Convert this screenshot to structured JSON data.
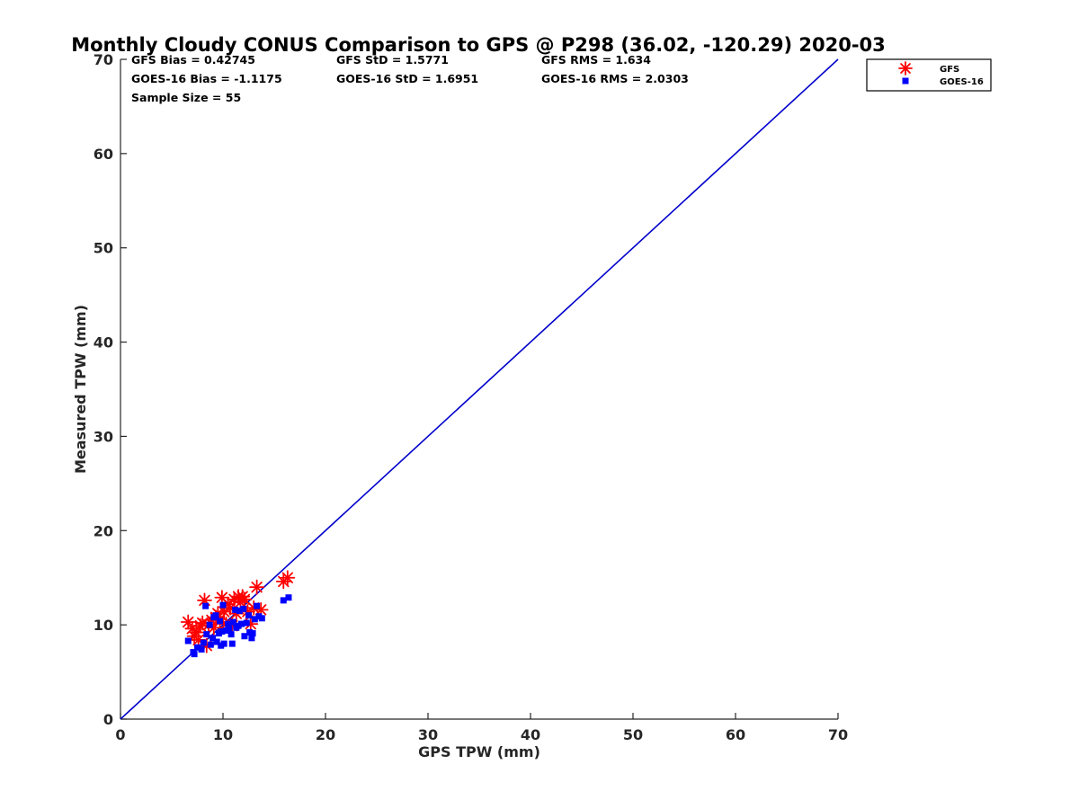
{
  "chart_data": {
    "type": "scatter",
    "title": "Monthly Cloudy CONUS Comparison to GPS @ P298 (36.02, -120.29) 2020-03",
    "xlabel": "GPS TPW (mm)",
    "ylabel": "Measured TPW (mm)",
    "xlim": [
      0,
      70
    ],
    "ylim": [
      0,
      70
    ],
    "xticks": [
      0,
      10,
      20,
      30,
      40,
      50,
      60,
      70
    ],
    "yticks": [
      0,
      10,
      20,
      30,
      40,
      50,
      60,
      70
    ],
    "grid": false,
    "legend_position": "top-right (outside)",
    "stats": [
      [
        "GFS Bias = 0.42745",
        "GFS StD = 1.5771",
        "GFS RMS = 1.634"
      ],
      [
        "GOES-16 Bias = -1.1175",
        "GOES-16 StD = 1.6951",
        "GOES-16 RMS = 2.0303"
      ],
      [
        "Sample Size = 55",
        "",
        ""
      ]
    ],
    "reference_line": {
      "from": [
        0,
        0
      ],
      "to": [
        70,
        70
      ],
      "color": "#0000cc"
    },
    "series": [
      {
        "name": "GFS",
        "marker": "asterisk",
        "color": "#ff0000",
        "points": [
          [
            6.6,
            10.3
          ],
          [
            7.0,
            9.6
          ],
          [
            7.2,
            8.8
          ],
          [
            7.4,
            9.2
          ],
          [
            7.6,
            8.4
          ],
          [
            7.8,
            9.9
          ],
          [
            8.0,
            10.2
          ],
          [
            8.2,
            12.6
          ],
          [
            8.4,
            7.8
          ],
          [
            8.6,
            10.0
          ],
          [
            8.9,
            10.5
          ],
          [
            9.1,
            9.7
          ],
          [
            9.3,
            10.8
          ],
          [
            9.5,
            11.2
          ],
          [
            9.7,
            10.6
          ],
          [
            9.9,
            12.9
          ],
          [
            10.1,
            11.4
          ],
          [
            10.3,
            10.1
          ],
          [
            10.5,
            12.2
          ],
          [
            10.7,
            11.8
          ],
          [
            10.9,
            9.9
          ],
          [
            11.1,
            12.7
          ],
          [
            11.3,
            11.2
          ],
          [
            11.5,
            13.0
          ],
          [
            11.7,
            12.4
          ],
          [
            11.9,
            13.0
          ],
          [
            12.1,
            12.7
          ],
          [
            12.4,
            11.4
          ],
          [
            12.7,
            10.1
          ],
          [
            13.0,
            11.8
          ],
          [
            13.3,
            14.0
          ],
          [
            13.7,
            11.6
          ],
          [
            15.9,
            14.6
          ],
          [
            16.3,
            15.0
          ]
        ]
      },
      {
        "name": "GOES-16",
        "marker": "square",
        "color": "#0000ff",
        "points": [
          [
            6.6,
            8.3
          ],
          [
            7.1,
            7.1
          ],
          [
            7.2,
            6.9
          ],
          [
            7.5,
            7.6
          ],
          [
            7.9,
            7.4
          ],
          [
            8.1,
            8.1
          ],
          [
            8.3,
            12.0
          ],
          [
            8.4,
            9.0
          ],
          [
            8.7,
            10.0
          ],
          [
            8.8,
            7.9
          ],
          [
            9.0,
            8.6
          ],
          [
            9.1,
            10.8
          ],
          [
            9.3,
            11.0
          ],
          [
            9.4,
            8.2
          ],
          [
            9.6,
            9.1
          ],
          [
            9.7,
            10.4
          ],
          [
            9.8,
            7.8
          ],
          [
            9.9,
            9.3
          ],
          [
            10.0,
            12.1
          ],
          [
            10.1,
            8.0
          ],
          [
            10.3,
            9.4
          ],
          [
            10.5,
            10.1
          ],
          [
            10.6,
            9.6
          ],
          [
            10.8,
            9.0
          ],
          [
            10.9,
            8.0
          ],
          [
            11.0,
            10.3
          ],
          [
            11.2,
            11.6
          ],
          [
            11.3,
            9.7
          ],
          [
            11.5,
            9.9
          ],
          [
            11.6,
            11.5
          ],
          [
            11.8,
            10.1
          ],
          [
            12.0,
            11.7
          ],
          [
            12.1,
            8.8
          ],
          [
            12.3,
            10.2
          ],
          [
            12.5,
            11.0
          ],
          [
            12.6,
            9.2
          ],
          [
            12.8,
            8.6
          ],
          [
            12.9,
            9.1
          ],
          [
            13.1,
            10.6
          ],
          [
            13.3,
            12.0
          ],
          [
            13.5,
            10.9
          ],
          [
            13.8,
            10.7
          ],
          [
            15.9,
            12.6
          ],
          [
            16.4,
            12.9
          ]
        ]
      }
    ]
  }
}
